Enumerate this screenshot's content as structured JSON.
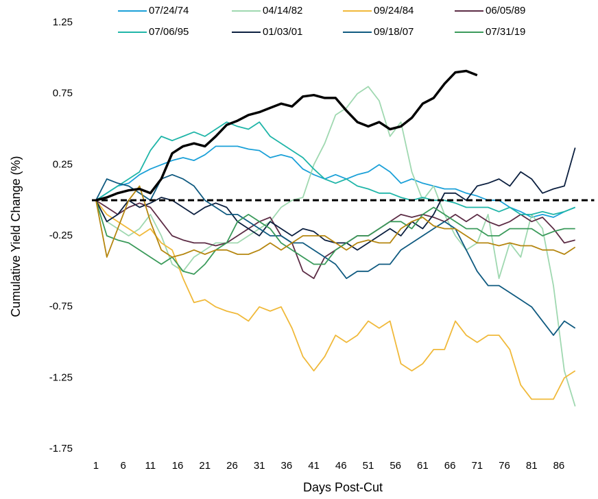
{
  "chart_data": {
    "type": "line",
    "x_label": "Days Post-Cut",
    "y_label": "Cumulative Yield Change (%)",
    "legend": "top",
    "x": [
      1,
      3,
      5,
      7,
      9,
      11,
      13,
      15,
      17,
      19,
      21,
      23,
      25,
      27,
      29,
      31,
      33,
      35,
      37,
      39,
      41,
      43,
      45,
      47,
      49,
      51,
      53,
      55,
      57,
      59,
      61,
      63,
      65,
      67,
      69,
      71,
      73,
      75,
      77,
      79,
      81,
      83,
      85,
      87,
      89
    ],
    "xlim": [
      0,
      93
    ],
    "xticks": [
      1,
      6,
      11,
      16,
      21,
      26,
      31,
      36,
      41,
      46,
      51,
      56,
      61,
      66,
      71,
      76,
      81,
      86
    ],
    "ylim": [
      -1.75,
      1.25
    ],
    "yticks": [
      -1.75,
      -1.25,
      -0.75,
      -0.25,
      0.25,
      0.75,
      1.25
    ],
    "hline": {
      "value": 0,
      "color": "#000000",
      "dashed": true
    },
    "series": [
      {
        "name": "07/24/74",
        "color": "#1aa0d8",
        "values": [
          0,
          0.05,
          0.1,
          0.12,
          0.18,
          0.22,
          0.25,
          0.28,
          0.3,
          0.28,
          0.32,
          0.38,
          0.38,
          0.38,
          0.36,
          0.35,
          0.3,
          0.32,
          0.3,
          0.22,
          0.18,
          0.15,
          0.18,
          0.15,
          0.18,
          0.2,
          0.25,
          0.2,
          0.12,
          0.15,
          0.12,
          0.1,
          0.08,
          0.08,
          0.05,
          0.03,
          0,
          0,
          -0.05,
          -0.08,
          -0.12,
          -0.1,
          -0.12,
          -0.08,
          -0.05
        ]
      },
      {
        "name": "04/14/82",
        "color": "#9fd8b0",
        "values": [
          0,
          -0.15,
          -0.2,
          -0.25,
          -0.2,
          -0.1,
          -0.25,
          -0.45,
          -0.5,
          -0.4,
          -0.35,
          -0.3,
          -0.3,
          -0.3,
          -0.25,
          -0.2,
          -0.15,
          -0.05,
          0,
          0.02,
          0.25,
          0.4,
          0.6,
          0.65,
          0.75,
          0.8,
          0.7,
          0.45,
          0.55,
          0.2,
          0,
          0.1,
          -0.1,
          -0.25,
          -0.35,
          -0.3,
          -0.1,
          -0.55,
          -0.3,
          -0.4,
          -0.1,
          -0.2,
          -0.6,
          -1.2,
          -1.45
        ]
      },
      {
        "name": "09/24/84",
        "color": "#f0b93a",
        "values": [
          0,
          -0.1,
          -0.15,
          -0.2,
          -0.25,
          -0.2,
          -0.3,
          -0.35,
          -0.55,
          -0.72,
          -0.7,
          -0.75,
          -0.78,
          -0.8,
          -0.85,
          -0.75,
          -0.78,
          -0.75,
          -0.9,
          -1.1,
          -1.2,
          -1.1,
          -0.95,
          -1.0,
          -0.95,
          -0.85,
          -0.9,
          -0.85,
          -1.15,
          -1.2,
          -1.15,
          -1.05,
          -1.05,
          -0.85,
          -0.95,
          -1.0,
          -0.95,
          -0.95,
          -1.05,
          -1.3,
          -1.4,
          -1.4,
          -1.4,
          -1.25,
          -1.2
        ]
      },
      {
        "name": "06/05/89",
        "color": "#5c2c45",
        "values": [
          0,
          -0.05,
          -0.1,
          -0.05,
          -0.02,
          -0.05,
          -0.15,
          -0.25,
          -0.28,
          -0.3,
          -0.3,
          -0.32,
          -0.3,
          -0.25,
          -0.2,
          -0.15,
          -0.12,
          -0.25,
          -0.3,
          -0.5,
          -0.55,
          -0.4,
          -0.35,
          -0.3,
          -0.25,
          -0.25,
          -0.2,
          -0.15,
          -0.1,
          -0.12,
          -0.1,
          -0.12,
          -0.15,
          -0.1,
          -0.15,
          -0.1,
          -0.15,
          -0.18,
          -0.15,
          -0.1,
          -0.15,
          -0.12,
          -0.2,
          -0.3,
          -0.28
        ]
      },
      {
        "name": "07/06/95",
        "color": "#1fb5a8",
        "values": [
          0,
          0.05,
          0.1,
          0.15,
          0.2,
          0.35,
          0.45,
          0.42,
          0.45,
          0.48,
          0.45,
          0.5,
          0.55,
          0.52,
          0.5,
          0.55,
          0.45,
          0.4,
          0.35,
          0.3,
          0.22,
          0.15,
          0.12,
          0.15,
          0.1,
          0.08,
          0.05,
          0.05,
          0.02,
          0,
          0.02,
          0,
          0,
          -0.02,
          -0.05,
          -0.05,
          -0.05,
          -0.08,
          -0.05,
          -0.1,
          -0.1,
          -0.08,
          -0.1,
          -0.08,
          -0.05
        ]
      },
      {
        "name": "01/03/01",
        "color": "#0b1f3f",
        "values": [
          0,
          -0.15,
          -0.1,
          0,
          -0.05,
          -0.02,
          0.02,
          0,
          -0.05,
          -0.1,
          -0.05,
          -0.02,
          -0.05,
          -0.15,
          -0.2,
          -0.25,
          -0.15,
          -0.2,
          -0.25,
          -0.2,
          -0.22,
          -0.28,
          -0.3,
          -0.3,
          -0.35,
          -0.3,
          -0.25,
          -0.2,
          -0.25,
          -0.15,
          -0.2,
          -0.1,
          0.05,
          0.05,
          0,
          0.1,
          0.12,
          0.15,
          0.1,
          0.2,
          0.15,
          0.05,
          0.08,
          0.1,
          0.37
        ]
      },
      {
        "name": "09/18/07",
        "color": "#0f5a80",
        "values": [
          0,
          0.15,
          0.12,
          0.1,
          0.05,
          0,
          0.15,
          0.18,
          0.15,
          0.1,
          0,
          -0.05,
          -0.1,
          -0.1,
          -0.15,
          -0.2,
          -0.25,
          -0.25,
          -0.3,
          -0.3,
          -0.35,
          -0.4,
          -0.45,
          -0.55,
          -0.5,
          -0.5,
          -0.45,
          -0.45,
          -0.35,
          -0.3,
          -0.25,
          -0.2,
          -0.15,
          -0.2,
          -0.35,
          -0.5,
          -0.6,
          -0.6,
          -0.65,
          -0.7,
          -0.75,
          -0.85,
          -0.95,
          -0.85,
          -0.9
        ]
      },
      {
        "name": "07/31/19",
        "color": "#3a9a5a",
        "values": [
          0,
          -0.25,
          -0.28,
          -0.3,
          -0.35,
          -0.4,
          -0.45,
          -0.4,
          -0.5,
          -0.52,
          -0.45,
          -0.35,
          -0.3,
          -0.15,
          -0.1,
          -0.15,
          -0.2,
          -0.3,
          -0.35,
          -0.4,
          -0.45,
          -0.45,
          -0.35,
          -0.3,
          -0.25,
          -0.25,
          -0.2,
          -0.15,
          -0.15,
          -0.2,
          -0.1,
          -0.05,
          -0.1,
          -0.15,
          -0.2,
          -0.2,
          -0.25,
          -0.25,
          -0.2,
          -0.2,
          -0.2,
          -0.25,
          -0.22,
          -0.2,
          -0.2
        ]
      },
      {
        "color": "#b5860f",
        "values": [
          0,
          -0.4,
          -0.2,
          0,
          0.1,
          -0.15,
          -0.35,
          -0.4,
          -0.38,
          -0.35,
          -0.38,
          -0.35,
          -0.35,
          -0.38,
          -0.38,
          -0.35,
          -0.3,
          -0.35,
          -0.3,
          -0.25,
          -0.25,
          -0.25,
          -0.3,
          -0.35,
          -0.3,
          -0.28,
          -0.3,
          -0.3,
          -0.2,
          -0.15,
          -0.12,
          -0.18,
          -0.2,
          -0.2,
          -0.25,
          -0.3,
          -0.3,
          -0.32,
          -0.3,
          -0.32,
          -0.32,
          -0.35,
          -0.35,
          -0.38,
          -0.33
        ]
      },
      {
        "color": "#000000",
        "width": 3.5,
        "values": [
          0,
          0.02,
          0.05,
          0.07,
          0.08,
          0.05,
          0.15,
          0.33,
          0.38,
          0.4,
          0.38,
          0.45,
          0.53,
          0.56,
          0.6,
          0.62,
          0.65,
          0.68,
          0.66,
          0.73,
          0.74,
          0.72,
          0.72,
          0.63,
          0.55,
          0.52,
          0.55,
          0.5,
          0.52,
          0.58,
          0.68,
          0.72,
          0.82,
          0.9,
          0.91,
          0.88,
          null,
          null,
          null,
          null,
          null,
          null,
          null,
          null,
          null
        ]
      }
    ]
  }
}
